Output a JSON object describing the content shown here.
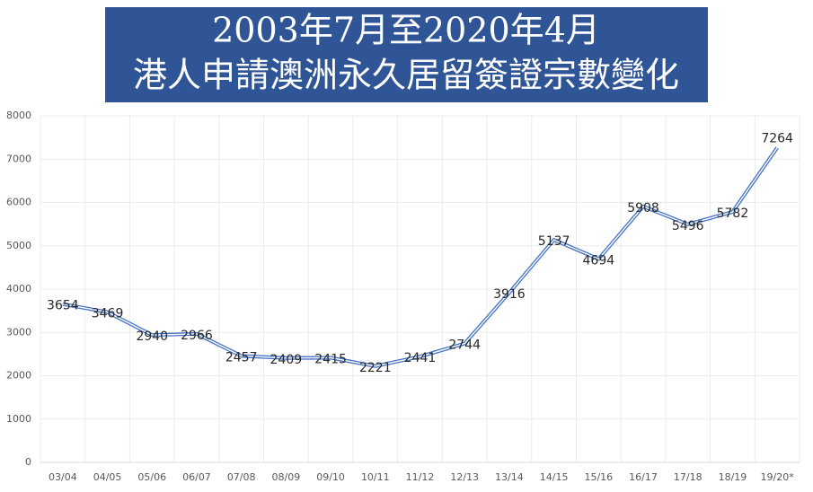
{
  "chart_data": {
    "type": "line",
    "title": "2003年7月至2020年4月",
    "subtitle": "港人申請澳洲永久居留簽證宗數變化",
    "categories": [
      "03/04",
      "04/05",
      "05/06",
      "06/07",
      "07/08",
      "08/09",
      "09/10",
      "10/11",
      "11/12",
      "12/13",
      "13/14",
      "14/15",
      "15/16",
      "16/17",
      "17/18",
      "18/19",
      "19/20*"
    ],
    "values": [
      3654,
      3469,
      2940,
      2966,
      2457,
      2409,
      2415,
      2221,
      2441,
      2744,
      3916,
      5137,
      4694,
      5908,
      5496,
      5782,
      7264
    ],
    "color": "#4472c4",
    "ylim": [
      0,
      8000
    ],
    "yticks": [
      0,
      1000,
      2000,
      3000,
      4000,
      5000,
      6000,
      7000,
      8000
    ],
    "grid": true
  }
}
